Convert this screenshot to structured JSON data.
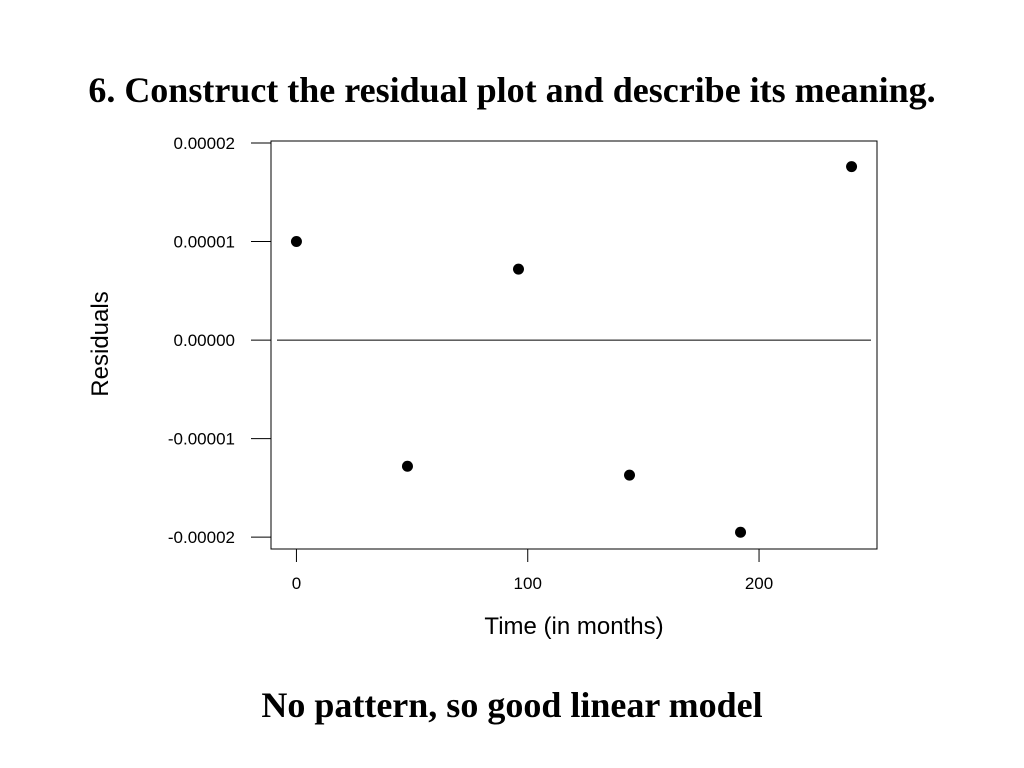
{
  "slide": {
    "heading": "6. Construct the residual plot and describe its meaning.",
    "conclusion": "No pattern, so good linear model"
  },
  "chart_data": {
    "type": "scatter",
    "title": "",
    "xlabel": "Time (in months)",
    "ylabel": "Residuals",
    "xlim": [
      -11,
      251
    ],
    "ylim": [
      -2.12e-05,
      2.02e-05
    ],
    "x_ticks": [
      0,
      100,
      200
    ],
    "x_tick_labels": [
      "0",
      "100",
      "200"
    ],
    "y_ticks": [
      -2e-05,
      -1e-05,
      0,
      1e-05,
      2e-05
    ],
    "y_tick_labels": [
      "-0.00002",
      "-0.00001",
      "0.00000",
      "0.00001",
      "0.00002"
    ],
    "reference_line_y": 0,
    "grid": false,
    "marker_color": "#000000",
    "series": [
      {
        "x": [
          0,
          48,
          96,
          144,
          192,
          240
        ],
        "y": [
          1e-05,
          -1.28e-05,
          7.2e-06,
          -1.37e-05,
          -1.95e-05,
          1.76e-05
        ]
      }
    ]
  }
}
